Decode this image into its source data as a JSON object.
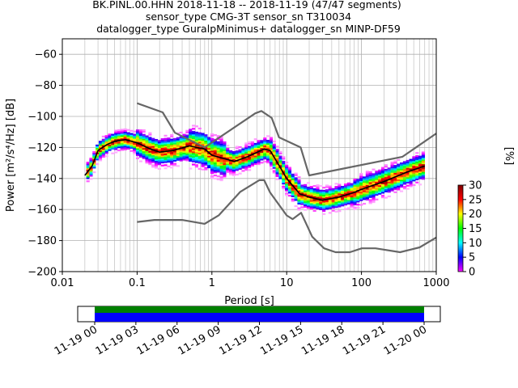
{
  "title_lines": [
    "BK.PINL.00.HHN   2018-11-18 -- 2018-11-19  (47/47 segments)",
    "sensor_type CMG-3T sensor_sn T310034",
    "datalogger_type GuralpMinimus+ datalogger_sn MINP-DF59"
  ],
  "chart_data": {
    "type": "heatmap",
    "xlabel": "Period [s]",
    "ylabel": "Power [m²/s⁴/Hz] [dB]",
    "x_scale": "log",
    "xlim": [
      0.01,
      1000
    ],
    "ylim": [
      -200,
      -50
    ],
    "x_ticks": [
      0.01,
      0.1,
      1,
      10,
      100,
      1000
    ],
    "x_tick_labels": [
      "0.01",
      "0.1",
      "1",
      "10",
      "100",
      "1000"
    ],
    "y_ticks": [
      -200,
      -180,
      -160,
      -140,
      -120,
      -100,
      -80,
      -60
    ],
    "y_tick_labels": [
      "−200",
      "−180",
      "−160",
      "−140",
      "−120",
      "−100",
      "−80",
      "−60"
    ],
    "grid": true,
    "colorbar": {
      "label": "[%]",
      "range": [
        0,
        30
      ],
      "ticks": [
        0,
        5,
        10,
        15,
        20,
        25,
        30
      ],
      "tick_labels": [
        "0",
        "5",
        "10",
        "15",
        "20",
        "25",
        "30"
      ],
      "colormap_stops": [
        "#ffffff",
        "#ff00ff",
        "#0000ff",
        "#00ffff",
        "#00ff00",
        "#ffff00",
        "#ff0000",
        "#800000"
      ]
    },
    "series": [
      {
        "role": "mode-curve",
        "color": "#000000",
        "points": [
          [
            0.02,
            -138
          ],
          [
            0.025,
            -132
          ],
          [
            0.03,
            -122
          ],
          [
            0.04,
            -118
          ],
          [
            0.05,
            -116
          ],
          [
            0.07,
            -115
          ],
          [
            0.1,
            -117
          ],
          [
            0.15,
            -121
          ],
          [
            0.2,
            -123
          ],
          [
            0.3,
            -122
          ],
          [
            0.5,
            -119
          ],
          [
            0.8,
            -121
          ],
          [
            1,
            -125
          ],
          [
            2,
            -129
          ],
          [
            3,
            -126
          ],
          [
            5,
            -121
          ],
          [
            6,
            -122
          ],
          [
            8,
            -132
          ],
          [
            10,
            -140
          ],
          [
            15,
            -150
          ],
          [
            20,
            -152
          ],
          [
            30,
            -154
          ],
          [
            50,
            -152
          ],
          [
            80,
            -149
          ],
          [
            100,
            -147
          ],
          [
            200,
            -142
          ],
          [
            400,
            -136
          ],
          [
            700,
            -132
          ]
        ]
      },
      {
        "role": "new-high-noise-model",
        "color": "#666666",
        "points": [
          [
            0.1,
            -91.5
          ],
          [
            0.22,
            -97.4
          ],
          [
            0.32,
            -110.5
          ],
          [
            0.8,
            -120
          ],
          [
            3.8,
            -98
          ],
          [
            4.6,
            -96.5
          ],
          [
            6.3,
            -101
          ],
          [
            7.9,
            -113.5
          ],
          [
            15.4,
            -120
          ],
          [
            20,
            -138
          ],
          [
            354,
            -126
          ],
          [
            1000,
            -111
          ]
        ]
      },
      {
        "role": "new-low-noise-model",
        "color": "#666666",
        "points": [
          [
            0.1,
            -168
          ],
          [
            0.17,
            -166.7
          ],
          [
            0.4,
            -166.7
          ],
          [
            0.8,
            -169.2
          ],
          [
            1.24,
            -163.7
          ],
          [
            2.4,
            -148.6
          ],
          [
            4.3,
            -141.1
          ],
          [
            5,
            -141.1
          ],
          [
            6,
            -149
          ],
          [
            10,
            -163.8
          ],
          [
            12,
            -166.2
          ],
          [
            15.6,
            -162.1
          ],
          [
            21.9,
            -177.5
          ],
          [
            31.6,
            -185
          ],
          [
            45,
            -187.5
          ],
          [
            70,
            -187.5
          ],
          [
            101,
            -185
          ],
          [
            154,
            -185
          ],
          [
            328,
            -187.5
          ],
          [
            600,
            -184.4
          ],
          [
            1000,
            -178
          ]
        ]
      }
    ],
    "density_regions": [
      {
        "x_range": [
          0.019,
          0.03
        ],
        "y_center": -135,
        "spread": 4
      },
      {
        "x_range": [
          0.03,
          0.1
        ],
        "y_center": -116,
        "spread": 4
      },
      {
        "x_range": [
          0.1,
          0.5
        ],
        "y_center": -122,
        "spread": 6
      },
      {
        "x_range": [
          0.5,
          1.5
        ],
        "y_center": -121,
        "spread": 8
      },
      {
        "x_range": [
          1.5,
          6
        ],
        "y_center": -126,
        "spread": 5
      },
      {
        "x_range": [
          6,
          15
        ],
        "y_center": -136,
        "spread": 6
      },
      {
        "x_range": [
          15,
          80
        ],
        "y_center": -154,
        "spread": 5
      },
      {
        "x_range": [
          80,
          700
        ],
        "y_center": -140,
        "spread": 6
      }
    ]
  },
  "timeline": {
    "x_tick_labels": [
      "11-19 00",
      "11-19 03",
      "11-19 06",
      "11-19 09",
      "11-19 12",
      "11-19 15",
      "11-19 18",
      "11-19 21",
      "11-20 00"
    ],
    "coverage_color": "#0000ff",
    "data_color": "#008000"
  }
}
